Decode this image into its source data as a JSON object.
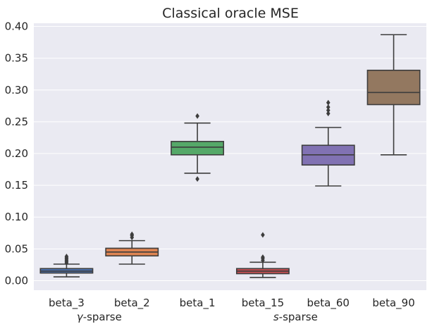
{
  "chart_data": {
    "type": "box",
    "title": "Classical oracle MSE",
    "xlabel": "",
    "ylabel": "",
    "ylim": [
      -0.015,
      0.405
    ],
    "yticks": [
      0.0,
      0.05,
      0.1,
      0.15,
      0.2,
      0.25,
      0.3,
      0.35,
      0.4
    ],
    "ytick_labels": [
      "0.00",
      "0.05",
      "0.10",
      "0.15",
      "0.20",
      "0.25",
      "0.30",
      "0.35",
      "0.40"
    ],
    "categories": [
      "beta_3",
      "beta_2",
      "beta_1",
      "beta_15",
      "beta_60",
      "beta_90"
    ],
    "group_labels": [
      {
        "prefix": "γ",
        "suffix": "-sparse",
        "center_between": [
          0,
          1
        ]
      },
      {
        "prefix": "s",
        "suffix": "-sparse",
        "center_between": [
          3,
          4
        ]
      }
    ],
    "boxes": [
      {
        "name": "beta_3",
        "color": "#4c72b0",
        "whisker_low": 0.006,
        "q1": 0.012,
        "median": 0.015,
        "q3": 0.019,
        "whisker_high": 0.026,
        "outliers": [
          0.028,
          0.03,
          0.032,
          0.034,
          0.036,
          0.038
        ]
      },
      {
        "name": "beta_2",
        "color": "#dd8452",
        "whisker_low": 0.026,
        "q1": 0.039,
        "median": 0.045,
        "q3": 0.051,
        "whisker_high": 0.063,
        "outliers": [
          0.068,
          0.071,
          0.073
        ]
      },
      {
        "name": "beta_1",
        "color": "#55a868",
        "whisker_low": 0.169,
        "q1": 0.198,
        "median": 0.21,
        "q3": 0.219,
        "whisker_high": 0.248,
        "outliers": [
          0.16,
          0.259
        ]
      },
      {
        "name": "beta_15",
        "color": "#c44e52",
        "whisker_low": 0.005,
        "q1": 0.011,
        "median": 0.015,
        "q3": 0.019,
        "whisker_high": 0.029,
        "outliers": [
          0.032,
          0.035,
          0.037,
          0.072
        ]
      },
      {
        "name": "beta_60",
        "color": "#8172b3",
        "whisker_low": 0.149,
        "q1": 0.182,
        "median": 0.198,
        "q3": 0.213,
        "whisker_high": 0.241,
        "outliers": [
          0.263,
          0.268,
          0.273,
          0.28
        ]
      },
      {
        "name": "beta_90",
        "color": "#937860",
        "whisker_low": 0.198,
        "q1": 0.277,
        "median": 0.296,
        "q3": 0.331,
        "whisker_high": 0.387,
        "outliers": []
      }
    ],
    "style": {
      "background": "#eaeaf2",
      "grid": "#ffffff",
      "line": "#3d3d3d",
      "outlier": "#3d3d3d"
    }
  }
}
